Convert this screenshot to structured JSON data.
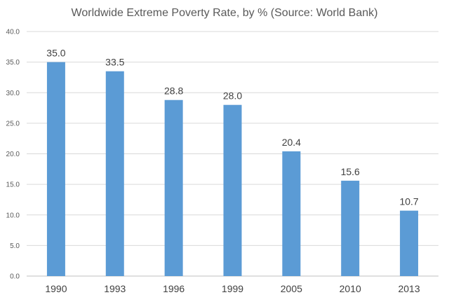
{
  "chart_data": {
    "type": "bar",
    "title": "Worldwide Extreme Poverty Rate, by % (Source: World Bank)",
    "categories": [
      "1990",
      "1993",
      "1996",
      "1999",
      "2005",
      "2010",
      "2013"
    ],
    "values": [
      35.0,
      33.5,
      28.8,
      28.0,
      20.4,
      15.6,
      10.7
    ],
    "data_labels": [
      "35.0",
      "33.5",
      "28.8",
      "28.0",
      "20.4",
      "15.6",
      "10.7"
    ],
    "y_ticks": [
      "0.0",
      "5.0",
      "10.0",
      "15.0",
      "20.0",
      "25.0",
      "30.0",
      "35.0",
      "40.0"
    ],
    "ylim": [
      0,
      40
    ],
    "xlabel": "",
    "ylabel": "",
    "grid": true,
    "legend": "none",
    "bar_color": "#5b9bd5",
    "grid_color": "#d9d9d9"
  }
}
